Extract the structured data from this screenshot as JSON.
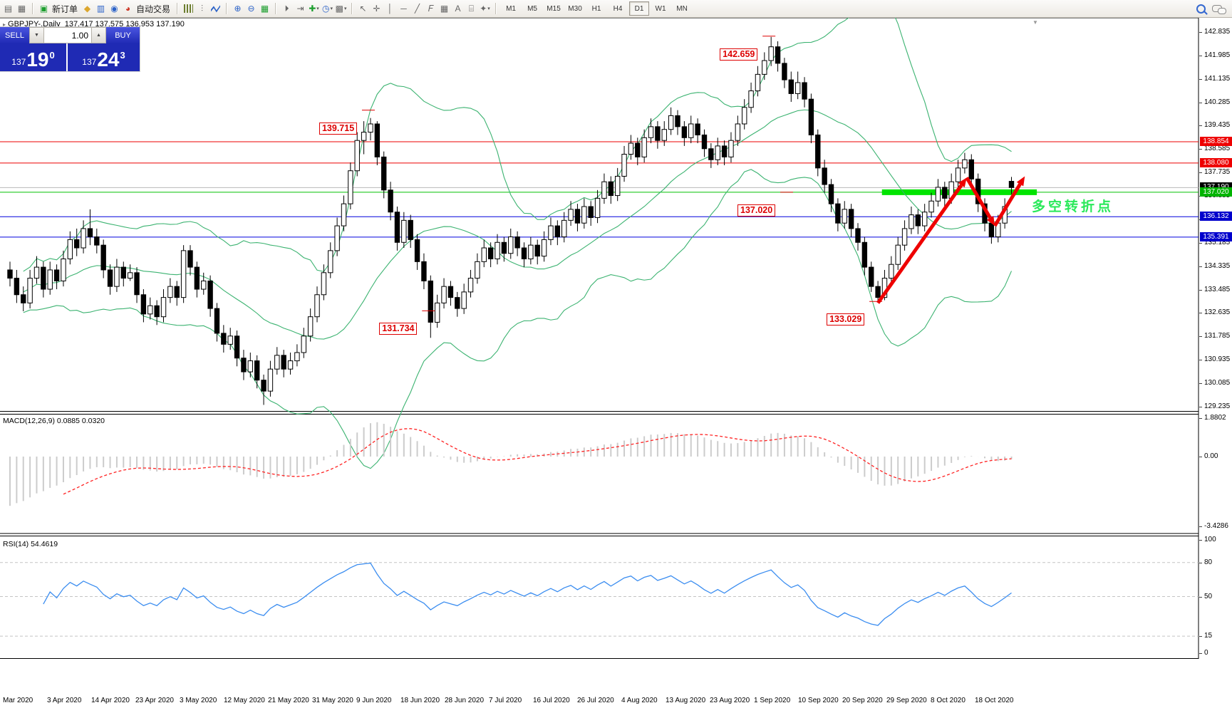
{
  "toolbar": {
    "new_order_label": "新订单",
    "autotrading_label": "自动交易",
    "timeframes": [
      "M1",
      "M5",
      "M15",
      "M30",
      "H1",
      "H4",
      "D1",
      "W1",
      "MN"
    ],
    "active_timeframe": "D1",
    "icons_left": [
      "new-chart-icon",
      "profiles-icon"
    ],
    "icons_trade": [
      "new-order-icon",
      "metaeditor-icon",
      "terminal-icon",
      "signals-icon",
      "autotrading-icon"
    ],
    "icons_charttype": [
      "bar-chart-icon",
      "candlestick-icon",
      "line-chart-icon"
    ],
    "icons_zoom": [
      "zoom-in-icon",
      "zoom-out-icon",
      "tile-windows-icon"
    ],
    "icons_scroll": [
      "auto-scroll-icon",
      "chart-shift-icon",
      "indicators-add-icon",
      "periods-icon",
      "templates-icon"
    ],
    "icons_draw": [
      "cursor-icon",
      "crosshair-icon",
      "vertical-line-icon",
      "horizontal-line-icon",
      "trendline-icon",
      "fibonacci-icon",
      "grid-icon",
      "text-icon",
      "label-icon",
      "arrows-icon"
    ],
    "icons_right": [
      "search-icon",
      "chat-icon"
    ]
  },
  "chart_header": {
    "symbol": "GBPJPY-,Daily",
    "ohlc": "137.417 137.575 136.953 137.190"
  },
  "trade_panel": {
    "sell_label": "SELL",
    "buy_label": "BUY",
    "volume": "1.00",
    "sell_small": "137",
    "sell_big": "19",
    "sell_sup": "0",
    "buy_small": "137",
    "buy_big": "24",
    "buy_sup": "3"
  },
  "chart_data": {
    "type": "candlestick",
    "symbol": "GBPJPY",
    "timeframe": "Daily",
    "title": "GBPJPY-,Daily 137.417 137.575 136.953 137.190",
    "x_labels": [
      "Mar 2020",
      "3 Apr 2020",
      "14 Apr 2020",
      "23 Apr 2020",
      "3 May 2020",
      "12 May 2020",
      "21 May 2020",
      "31 May 2020",
      "9 Jun 2020",
      "18 Jun 2020",
      "28 Jun 2020",
      "7 Jul 2020",
      "16 Jul 2020",
      "26 Jul 2020",
      "4 Aug 2020",
      "13 Aug 2020",
      "23 Aug 2020",
      "1 Sep 2020",
      "10 Sep 2020",
      "20 Sep 2020",
      "29 Sep 2020",
      "8 Oct 2020",
      "18 Oct 2020"
    ],
    "y_ticks_price": [
      142.835,
      141.985,
      141.135,
      140.285,
      139.435,
      138.585,
      137.735,
      136.885,
      136.035,
      135.185,
      134.335,
      133.485,
      132.635,
      131.785,
      130.935,
      130.085,
      129.235
    ],
    "ylim": [
      129.235,
      142.835
    ],
    "candles": [
      [
        134.2,
        134.5,
        133.6,
        133.9
      ],
      [
        133.9,
        134.2,
        133.0,
        133.3
      ],
      [
        133.3,
        133.6,
        132.7,
        133.0
      ],
      [
        133.0,
        134.2,
        132.8,
        133.9
      ],
      [
        133.9,
        134.7,
        133.7,
        134.3
      ],
      [
        134.3,
        134.5,
        133.2,
        133.5
      ],
      [
        133.5,
        134.5,
        133.3,
        134.2
      ],
      [
        134.2,
        134.4,
        133.5,
        133.8
      ],
      [
        133.8,
        134.9,
        133.6,
        134.6
      ],
      [
        134.6,
        135.6,
        134.4,
        135.3
      ],
      [
        135.3,
        135.7,
        134.7,
        135.0
      ],
      [
        135.0,
        136.0,
        134.8,
        135.7
      ],
      [
        135.7,
        136.4,
        135.1,
        135.4
      ],
      [
        135.4,
        135.7,
        134.8,
        135.1
      ],
      [
        135.1,
        135.3,
        133.9,
        134.2
      ],
      [
        134.2,
        134.4,
        133.3,
        133.6
      ],
      [
        133.6,
        134.6,
        133.4,
        134.3
      ],
      [
        134.3,
        134.5,
        133.6,
        133.9
      ],
      [
        133.9,
        134.4,
        133.8,
        134.1
      ],
      [
        134.1,
        134.3,
        133.0,
        133.3
      ],
      [
        133.3,
        133.5,
        132.3,
        132.6
      ],
      [
        132.6,
        133.2,
        132.4,
        132.9
      ],
      [
        132.9,
        133.1,
        132.2,
        132.5
      ],
      [
        132.5,
        133.5,
        132.3,
        133.2
      ],
      [
        133.2,
        133.9,
        133.0,
        133.6
      ],
      [
        133.6,
        133.8,
        132.9,
        133.2
      ],
      [
        133.2,
        135.1,
        133.0,
        134.9
      ],
      [
        134.9,
        135.1,
        134.0,
        134.3
      ],
      [
        134.3,
        134.5,
        133.2,
        133.5
      ],
      [
        133.5,
        134.1,
        133.3,
        133.8
      ],
      [
        133.8,
        134.0,
        132.5,
        132.8
      ],
      [
        132.8,
        133.0,
        131.6,
        131.9
      ],
      [
        131.9,
        132.2,
        131.2,
        131.5
      ],
      [
        131.5,
        132.1,
        131.3,
        131.8
      ],
      [
        131.8,
        132.0,
        130.7,
        131.0
      ],
      [
        131.0,
        131.3,
        130.2,
        130.5
      ],
      [
        130.5,
        131.2,
        130.3,
        130.9
      ],
      [
        130.9,
        131.1,
        129.9,
        130.2
      ],
      [
        130.2,
        130.4,
        129.3,
        129.8
      ],
      [
        129.8,
        130.9,
        129.6,
        130.6
      ],
      [
        130.6,
        131.4,
        130.4,
        131.1
      ],
      [
        131.1,
        131.3,
        130.3,
        130.6
      ],
      [
        130.6,
        131.2,
        130.4,
        130.9
      ],
      [
        130.9,
        131.5,
        130.7,
        131.2
      ],
      [
        131.2,
        132.1,
        131.0,
        131.8
      ],
      [
        131.8,
        132.8,
        131.6,
        132.5
      ],
      [
        132.5,
        133.6,
        132.3,
        133.3
      ],
      [
        133.3,
        134.4,
        133.1,
        134.1
      ],
      [
        134.1,
        135.2,
        133.9,
        134.9
      ],
      [
        134.9,
        136.1,
        134.7,
        135.8
      ],
      [
        135.8,
        136.9,
        135.6,
        136.6
      ],
      [
        136.6,
        138.1,
        136.4,
        137.8
      ],
      [
        137.8,
        139.2,
        137.6,
        138.9
      ],
      [
        138.9,
        139.6,
        138.4,
        139.2
      ],
      [
        139.2,
        139.715,
        138.9,
        139.5
      ],
      [
        139.5,
        139.6,
        138.0,
        138.3
      ],
      [
        138.3,
        138.5,
        136.8,
        137.1
      ],
      [
        137.1,
        137.4,
        136.0,
        136.3
      ],
      [
        136.3,
        136.5,
        134.9,
        135.2
      ],
      [
        135.2,
        136.3,
        135.0,
        136.0
      ],
      [
        136.0,
        136.2,
        135.0,
        135.3
      ],
      [
        135.3,
        135.5,
        134.2,
        134.5
      ],
      [
        134.5,
        134.8,
        133.5,
        133.8
      ],
      [
        133.8,
        134.0,
        131.734,
        132.3
      ],
      [
        132.3,
        133.3,
        132.1,
        133.0
      ],
      [
        133.0,
        133.9,
        132.8,
        133.6
      ],
      [
        133.6,
        133.8,
        132.9,
        133.2
      ],
      [
        133.2,
        133.4,
        132.5,
        132.8
      ],
      [
        132.8,
        133.7,
        132.6,
        133.4
      ],
      [
        133.4,
        134.2,
        133.2,
        133.9
      ],
      [
        133.9,
        134.8,
        133.7,
        134.5
      ],
      [
        134.5,
        135.3,
        134.3,
        135.0
      ],
      [
        135.0,
        135.2,
        134.3,
        134.6
      ],
      [
        134.6,
        135.5,
        134.4,
        135.2
      ],
      [
        135.2,
        135.4,
        134.5,
        134.8
      ],
      [
        134.8,
        135.7,
        134.6,
        135.4
      ],
      [
        135.4,
        135.6,
        134.7,
        135.0
      ],
      [
        135.0,
        135.2,
        134.3,
        134.6
      ],
      [
        134.6,
        135.4,
        134.4,
        135.1
      ],
      [
        135.1,
        135.3,
        134.4,
        134.7
      ],
      [
        134.7,
        135.6,
        134.5,
        135.3
      ],
      [
        135.3,
        136.1,
        135.1,
        135.8
      ],
      [
        135.8,
        136.0,
        135.1,
        135.4
      ],
      [
        135.4,
        136.3,
        135.2,
        136.0
      ],
      [
        136.0,
        136.7,
        135.8,
        136.4
      ],
      [
        136.4,
        136.6,
        135.6,
        135.9
      ],
      [
        135.9,
        136.8,
        135.7,
        136.5
      ],
      [
        136.5,
        136.7,
        135.8,
        136.1
      ],
      [
        136.1,
        137.1,
        135.9,
        136.8
      ],
      [
        136.8,
        137.7,
        136.6,
        137.4
      ],
      [
        137.4,
        137.6,
        136.6,
        136.9
      ],
      [
        136.9,
        137.9,
        136.7,
        137.6
      ],
      [
        137.6,
        138.7,
        137.4,
        138.4
      ],
      [
        138.4,
        139.1,
        138.2,
        138.8
      ],
      [
        138.8,
        139.0,
        138.0,
        138.3
      ],
      [
        138.3,
        139.3,
        138.1,
        139.0
      ],
      [
        139.0,
        139.7,
        138.8,
        139.4
      ],
      [
        139.4,
        139.6,
        138.6,
        138.9
      ],
      [
        138.9,
        139.6,
        138.7,
        139.3
      ],
      [
        139.3,
        140.1,
        139.1,
        139.8
      ],
      [
        139.8,
        140.0,
        139.1,
        139.4
      ],
      [
        139.4,
        139.6,
        138.7,
        139.0
      ],
      [
        139.0,
        139.8,
        138.8,
        139.5
      ],
      [
        139.5,
        139.7,
        138.8,
        139.1
      ],
      [
        139.1,
        139.3,
        138.3,
        138.6
      ],
      [
        138.6,
        138.8,
        137.9,
        138.2
      ],
      [
        138.2,
        139.0,
        138.0,
        138.7
      ],
      [
        138.7,
        138.9,
        138.0,
        138.3
      ],
      [
        138.3,
        139.2,
        138.1,
        138.9
      ],
      [
        138.9,
        139.8,
        138.7,
        139.5
      ],
      [
        139.5,
        140.4,
        139.3,
        140.1
      ],
      [
        140.1,
        141.0,
        139.9,
        140.7
      ],
      [
        140.7,
        141.6,
        140.5,
        141.3
      ],
      [
        141.3,
        142.1,
        141.1,
        141.8
      ],
      [
        141.8,
        142.659,
        141.6,
        142.3
      ],
      [
        142.3,
        142.5,
        141.4,
        141.7
      ],
      [
        141.7,
        141.9,
        140.8,
        141.1
      ],
      [
        141.1,
        141.4,
        140.3,
        140.6
      ],
      [
        140.6,
        141.4,
        140.4,
        141.0
      ],
      [
        141.0,
        141.2,
        140.1,
        140.4
      ],
      [
        140.4,
        140.6,
        138.8,
        139.1
      ],
      [
        139.1,
        139.3,
        137.6,
        137.9
      ],
      [
        137.9,
        138.2,
        137.0,
        137.3
      ],
      [
        137.3,
        137.5,
        136.3,
        136.6
      ],
      [
        136.6,
        136.8,
        135.6,
        135.9
      ],
      [
        135.9,
        136.7,
        135.7,
        136.4
      ],
      [
        136.4,
        136.6,
        135.4,
        135.7
      ],
      [
        135.7,
        135.9,
        134.9,
        135.2
      ],
      [
        135.2,
        135.4,
        134.0,
        134.3
      ],
      [
        134.3,
        134.5,
        133.4,
        133.6
      ],
      [
        133.6,
        133.8,
        133.029,
        133.2
      ],
      [
        133.2,
        134.2,
        133.1,
        133.9
      ],
      [
        133.9,
        134.7,
        133.7,
        134.4
      ],
      [
        134.4,
        135.4,
        134.2,
        135.1
      ],
      [
        135.1,
        136.0,
        134.9,
        135.7
      ],
      [
        135.7,
        136.5,
        135.5,
        136.2
      ],
      [
        136.2,
        136.4,
        135.5,
        135.8
      ],
      [
        135.8,
        136.6,
        135.6,
        136.3
      ],
      [
        136.3,
        137.0,
        136.1,
        136.7
      ],
      [
        136.7,
        137.5,
        136.5,
        137.2
      ],
      [
        137.2,
        137.4,
        136.5,
        136.8
      ],
      [
        136.8,
        137.7,
        136.6,
        137.4
      ],
      [
        137.4,
        138.2,
        137.2,
        137.9
      ],
      [
        137.9,
        138.45,
        137.7,
        138.2
      ],
      [
        138.2,
        138.4,
        137.2,
        137.5
      ],
      [
        137.5,
        137.7,
        136.3,
        136.6
      ],
      [
        136.6,
        136.8,
        135.6,
        135.9
      ],
      [
        135.9,
        136.1,
        135.15,
        135.4
      ],
      [
        135.4,
        136.2,
        135.2,
        135.9
      ],
      [
        135.9,
        136.8,
        135.7,
        136.5
      ],
      [
        137.417,
        137.575,
        136.953,
        137.19
      ]
    ],
    "bollinger": {
      "period": 20,
      "deviation": 2,
      "color": "#3cb371"
    },
    "levels": [
      {
        "price": 138.854,
        "color": "#ee0000",
        "badge_bg": "#ee0000",
        "label": "138.854"
      },
      {
        "price": 138.08,
        "color": "#ee0000",
        "badge_bg": "#ee0000",
        "label": "138.080"
      },
      {
        "price": 137.19,
        "color": "#b8b8b8",
        "badge_bg": "#000000",
        "label": "137.190"
      },
      {
        "price": 137.02,
        "color": "#00c000",
        "badge_bg": "#00b400",
        "label": "137.020"
      },
      {
        "price": 136.132,
        "color": "#0000dd",
        "badge_bg": "#0000cc",
        "label": "136.132"
      },
      {
        "price": 135.391,
        "color": "#0000dd",
        "badge_bg": "#0000cc",
        "label": "135.391"
      }
    ],
    "current_price": 137.19,
    "callouts": [
      {
        "text": "142.659",
        "i": 114,
        "price": 142.659
      },
      {
        "text": "139.715",
        "i": 54,
        "price": 139.715
      },
      {
        "text": "131.734",
        "i": 63,
        "price": 131.734
      },
      {
        "text": "133.029",
        "i": 130,
        "price": 133.029
      },
      {
        "text": "137.020",
        "i": 109,
        "price": 137.02
      }
    ],
    "trend_arrows": {
      "color": "#ee0000",
      "points": [
        {
          "i": 130,
          "price": 133.0
        },
        {
          "i": 143.3,
          "price": 137.55
        },
        {
          "i": 147.5,
          "price": 135.8
        },
        {
          "i": 152,
          "price": 137.6
        }
      ]
    },
    "support_bar": {
      "price": 137.02,
      "i_from": 130.6,
      "i_to": 153.8,
      "color": "#00e400"
    },
    "annotation_text": {
      "text": "多空转折点",
      "color": "#2ae95a"
    },
    "indicators": [
      {
        "name": "MACD",
        "params": "12,26,9",
        "label": "MACD(12,26,9) 0.0885 0.0320",
        "values": [
          0.0885,
          0.032
        ],
        "y_ticks": [
          "1.8802",
          "0.00",
          "-3.4286"
        ],
        "histogram_color": "#cccccc",
        "signal_color": "#ff2222"
      },
      {
        "name": "RSI",
        "params": "14",
        "label": "RSI(14) 54.4619",
        "value": 54.4619,
        "y_ticks": [
          "100",
          "80",
          "50",
          "15",
          "0"
        ],
        "dashed_levels": [
          80,
          50,
          15
        ],
        "line_color": "#3b8df0"
      }
    ]
  }
}
